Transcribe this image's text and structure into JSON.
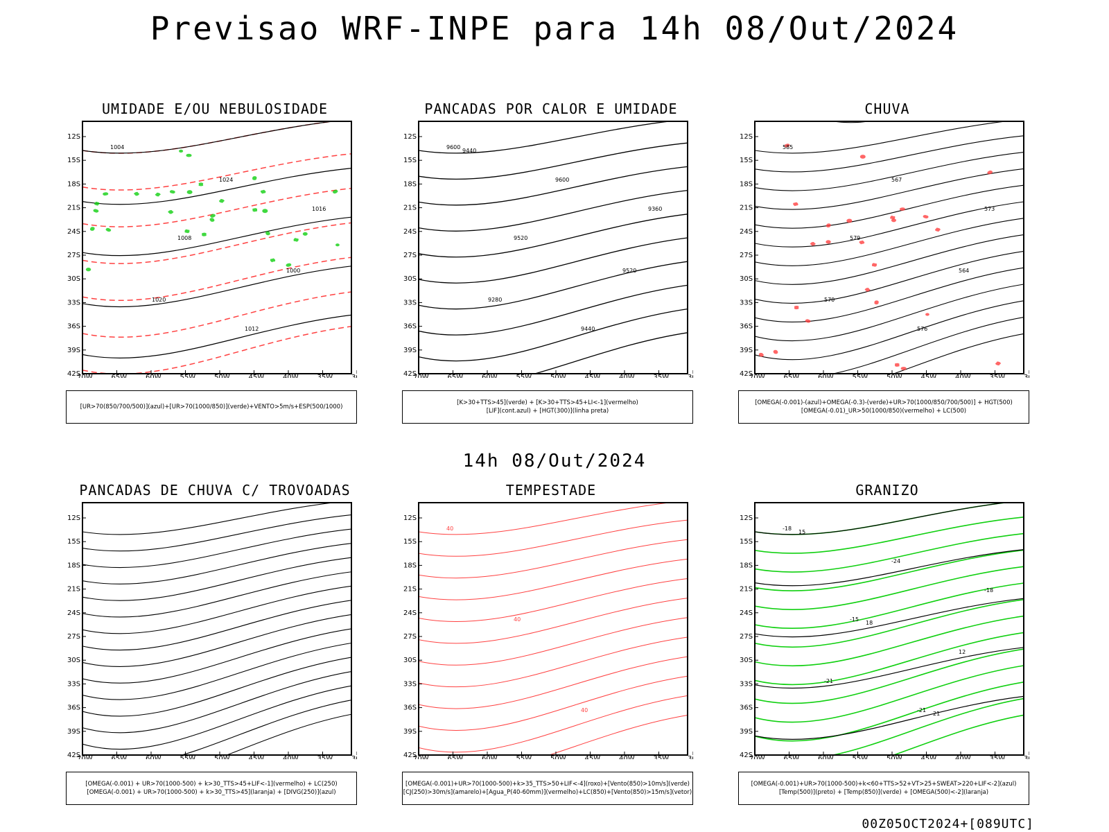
{
  "main_title": "Previsao WRF-INPE  para 14h 08/Out/2024",
  "mid_time": "14h 08/Out/2024",
  "footer": "00Z05OCT2024+[089UTC]",
  "axes": {
    "lat_labels": [
      "12S",
      "15S",
      "18S",
      "21S",
      "24S",
      "27S",
      "30S",
      "33S",
      "36S",
      "39S",
      "42S"
    ],
    "lon_labels": [
      "70W",
      "65W",
      "60W",
      "55W",
      "50W",
      "45W",
      "40W",
      "35W",
      "30W"
    ]
  },
  "colors": {
    "blue": "#4a4aff",
    "light_blue": "#b0b4f0",
    "green": "#10d010",
    "red": "#ff4040",
    "dark_green": "#1d4848",
    "yellow": "#e8dc30",
    "orange": "#f08a1e"
  },
  "panels": [
    {
      "title": "UMIDADE E/OU NEBULOSIDADE",
      "legend": [
        "[UR>70(850/700/500)](azul)+[UR>70(1000/850)](verde)+VENTO>5m/s+ESP(500/1000)"
      ],
      "labels": [
        "1004",
        "1008",
        "1012",
        "1016",
        "1020",
        "1024",
        "1000"
      ]
    },
    {
      "title": "PANCADAS POR CALOR E UMIDADE",
      "legend": [
        "[K>30+TTS>45](verde) + [K>30+TTS>45+LI<-1](vermelho)",
        "[LIF](cont.azul) + [HGT(300)](linha preta)"
      ],
      "labels": [
        "9600",
        "9520",
        "9440",
        "9360",
        "9280",
        "9600",
        "9520",
        "9440"
      ]
    },
    {
      "title": "CHUVA",
      "legend": [
        "[OMEGA(-0.001)-(azul)+OMEGA(-0.3)-(verde)+UR>70(1000/850/700/500)] + HGT(500)",
        "[OMEGA(-0.01)_UR>50(1000/850)(vermelho) + LC(500)"
      ],
      "labels": [
        "585",
        "579",
        "576",
        "573",
        "570",
        "567",
        "564"
      ]
    },
    {
      "title": "PANCADAS DE CHUVA C/ TROVOADAS",
      "legend": [
        "[OMEGA(-0.001) + UR>70(1000-500) + k>30_TTS>45+LIF<-1](vermelho) + LC(250)",
        "[OMEGA(-0.001) + UR>70(1000-500) + k>30_TTS>45](laranja) + [DIVG(250)](azul)"
      ],
      "labels": []
    },
    {
      "title": "TEMPESTADE",
      "legend": [
        "[OMEGA(-0.001)+UR>70(1000-500)+k>35_TTS>50+LIF<-4](roxo)+[Vento(850)>10m/s](verde)",
        "[CJ(250)>30m/s](amarelo)+[Agua_P(40-60mm)](vermelho)+LC(850)+[Vento(850)>15m/s](vetor)"
      ],
      "labels": [
        "40",
        "40",
        "40"
      ]
    },
    {
      "title": "GRANIZO",
      "legend": [
        "[OMEGA(-0.001)+UR>70(1000-500)+k<60+TTS>52+VT>25+SWEAT>220+LIF<-2](azul)",
        "[Temp(500)](preto) + [Temp(850)](verde) + [OMEGA(500)<-2](laranja)"
      ],
      "labels": [
        "-18",
        "-15",
        "-21",
        "-18",
        "-21",
        "-24",
        "12",
        "15",
        "18",
        "21"
      ]
    }
  ]
}
